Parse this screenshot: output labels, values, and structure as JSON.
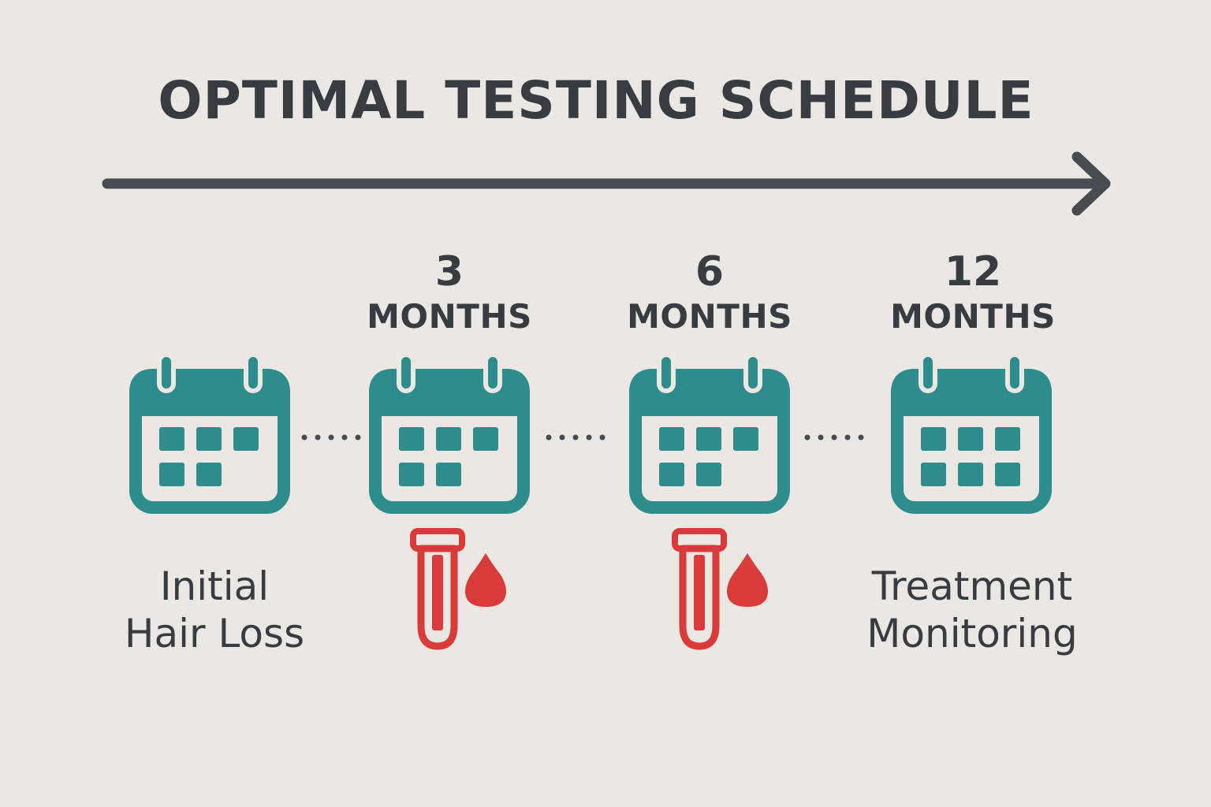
{
  "title": "OPTIMAL TESTING SCHEDULE",
  "colors": {
    "background": "#ebe8e3",
    "text": "#363c42",
    "calendar": "#2e8c8c",
    "blood": "#d93a3a"
  },
  "stages": [
    {
      "number": "",
      "unit": "",
      "caption_lines": [
        "Initial",
        "Hair Loss"
      ],
      "icon": "calendar-icon",
      "blood_test": false
    },
    {
      "number": "3",
      "unit": "MONTHS",
      "caption_lines": [],
      "icon": "calendar-icon",
      "blood_test": true
    },
    {
      "number": "6",
      "unit": "MONTHS",
      "caption_lines": [],
      "icon": "calendar-icon",
      "blood_test": true
    },
    {
      "number": "12",
      "unit": "MONTHS",
      "caption_lines": [
        "Treatment",
        "Monitoring"
      ],
      "icon": "calendar-icon",
      "blood_test": false
    }
  ]
}
